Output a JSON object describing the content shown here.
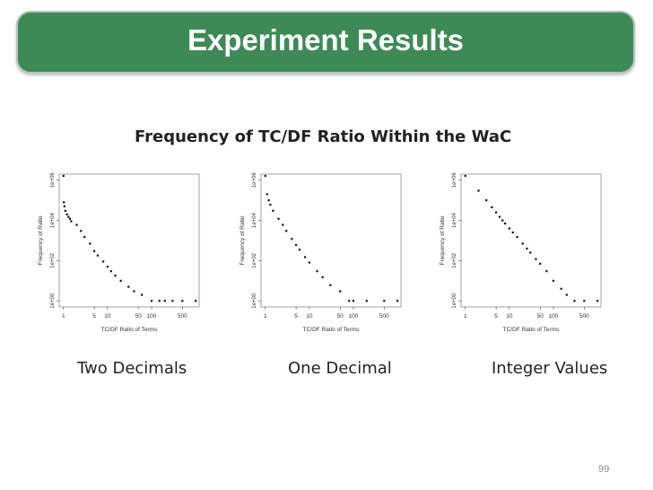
{
  "banner": {
    "title": "Experiment Results",
    "color": "#3e8a57"
  },
  "subtitle": "Frequency of TC/DF Ratio Within the WaC",
  "page_number": "99",
  "chart_data": [
    {
      "type": "scatter",
      "caption": "Two Decimals",
      "xlabel": "TC/DF Ratio of Terms",
      "ylabel": "Frequency of Ratio",
      "x_scale": "log",
      "y_scale": "log",
      "xlim": [
        0.8,
        1200
      ],
      "ylim": [
        0.5,
        2000000
      ],
      "x_ticks": [
        "1",
        "5",
        "10",
        "50",
        "100",
        "500"
      ],
      "y_ticks": [
        "1e+00",
        "1e+02",
        "1e+04",
        "1e+06"
      ],
      "x": [
        1.0,
        1.02,
        1.05,
        1.1,
        1.2,
        1.3,
        1.4,
        1.5,
        2.0,
        2.5,
        3,
        4,
        5,
        6,
        8,
        10,
        12,
        15,
        20,
        30,
        40,
        60,
        100,
        150,
        200,
        300,
        500,
        1000
      ],
      "y": [
        3000000,
        80000,
        50000,
        30000,
        20000,
        15000,
        12000,
        9000,
        6000,
        3000,
        1500,
        700,
        300,
        180,
        90,
        50,
        30,
        18,
        10,
        5,
        3,
        2,
        1,
        1,
        1,
        1,
        1,
        1
      ]
    },
    {
      "type": "scatter",
      "caption": "One Decimal",
      "xlabel": "TC/DF Ratio of Terms",
      "ylabel": "Frequency of Ratio",
      "x_scale": "log",
      "y_scale": "log",
      "xlim": [
        0.8,
        1200
      ],
      "ylim": [
        0.5,
        2000000
      ],
      "x_ticks": [
        "1",
        "5",
        "10",
        "50",
        "100",
        "500"
      ],
      "y_ticks": [
        "1e+00",
        "1e+02",
        "1e+04",
        "1e+06"
      ],
      "x": [
        1.0,
        1.1,
        1.2,
        1.3,
        1.5,
        2.0,
        2.5,
        3,
        4,
        5,
        6,
        8,
        10,
        15,
        20,
        30,
        50,
        80,
        100,
        200,
        500,
        1000
      ],
      "y": [
        2500000,
        200000,
        100000,
        60000,
        30000,
        12000,
        6000,
        3000,
        1200,
        600,
        350,
        150,
        80,
        30,
        15,
        6,
        3,
        1,
        1,
        1,
        1,
        1
      ]
    },
    {
      "type": "scatter",
      "caption": "Integer Values",
      "xlabel": "TC/DF Ratio of Terms",
      "ylabel": "Frequency of Ratio",
      "x_scale": "log",
      "y_scale": "log",
      "xlim": [
        0.8,
        1200
      ],
      "ylim": [
        0.5,
        2000000
      ],
      "x_ticks": [
        "1",
        "5",
        "10",
        "50",
        "100",
        "500"
      ],
      "y_ticks": [
        "1e+00",
        "1e+02",
        "1e+04",
        "1e+06"
      ],
      "x": [
        1,
        2,
        3,
        4,
        5,
        6,
        7,
        8,
        10,
        12,
        15,
        20,
        25,
        30,
        40,
        50,
        70,
        100,
        150,
        200,
        300,
        500,
        1000
      ],
      "y": [
        2000000,
        300000,
        100000,
        45000,
        25000,
        15000,
        10000,
        7000,
        4000,
        2500,
        1500,
        700,
        400,
        250,
        120,
        70,
        30,
        10,
        4,
        2,
        1,
        1,
        1
      ]
    }
  ]
}
